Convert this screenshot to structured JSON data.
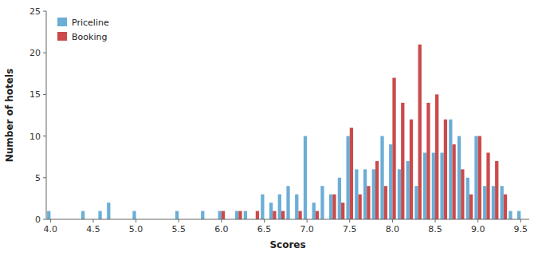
{
  "chart_data": {
    "type": "bar",
    "xlabel": "Scores",
    "ylabel": "Number of hotels",
    "x": [
      4.0,
      4.1,
      4.2,
      4.3,
      4.4,
      4.5,
      4.6,
      4.7,
      4.8,
      4.9,
      5.0,
      5.1,
      5.2,
      5.3,
      5.4,
      5.5,
      5.6,
      5.7,
      5.8,
      5.9,
      6.0,
      6.1,
      6.2,
      6.3,
      6.4,
      6.5,
      6.6,
      6.7,
      6.8,
      6.9,
      7.0,
      7.1,
      7.2,
      7.3,
      7.4,
      7.5,
      7.6,
      7.7,
      7.8,
      7.9,
      8.0,
      8.1,
      8.2,
      8.3,
      8.4,
      8.5,
      8.6,
      8.7,
      8.8,
      8.9,
      9.0,
      9.1,
      9.2,
      9.3,
      9.4,
      9.5
    ],
    "series": [
      {
        "name": "Priceline",
        "color": "#6BAED6",
        "values": [
          1,
          0,
          0,
          0,
          1,
          0,
          1,
          2,
          0,
          0,
          1,
          0,
          0,
          0,
          0,
          1,
          0,
          0,
          1,
          0,
          1,
          0,
          1,
          1,
          0,
          3,
          2,
          3,
          4,
          3,
          10,
          2,
          4,
          3,
          5,
          10,
          6,
          6,
          6,
          10,
          9,
          6,
          7,
          4,
          8,
          8,
          8,
          12,
          10,
          5,
          10,
          4,
          4,
          4,
          1,
          1
        ]
      },
      {
        "name": "Booking",
        "color": "#CB4A4A",
        "values": [
          0,
          0,
          0,
          0,
          0,
          0,
          0,
          0,
          0,
          0,
          0,
          0,
          0,
          0,
          0,
          0,
          0,
          0,
          0,
          0,
          1,
          0,
          1,
          0,
          1,
          0,
          1,
          1,
          0,
          1,
          0,
          1,
          0,
          3,
          2,
          11,
          3,
          4,
          7,
          4,
          17,
          14,
          12,
          21,
          14,
          15,
          12,
          9,
          6,
          3,
          10,
          8,
          7,
          3,
          0,
          0
        ]
      }
    ],
    "xlim": [
      3.95,
      9.6
    ],
    "ylim": [
      0,
      25
    ],
    "xticks": [
      {
        "value": 4.0,
        "label": "4.0"
      },
      {
        "value": 4.5,
        "label": "4.5"
      },
      {
        "value": 5.0,
        "label": "5.0"
      },
      {
        "value": 5.5,
        "label": "5.5"
      },
      {
        "value": 6.0,
        "label": "6.0"
      },
      {
        "value": 6.5,
        "label": "6.5"
      },
      {
        "value": 7.0,
        "label": "7.0"
      },
      {
        "value": 7.5,
        "label": "7.5"
      },
      {
        "value": 8.0,
        "label": "8.0"
      },
      {
        "value": 8.5,
        "label": "8.5"
      },
      {
        "value": 9.0,
        "label": "9.0"
      },
      {
        "value": 9.5,
        "label": "9.5"
      }
    ],
    "yticks": [
      0,
      5,
      10,
      15,
      20,
      25
    ],
    "legend": "upper left",
    "grid": false
  }
}
